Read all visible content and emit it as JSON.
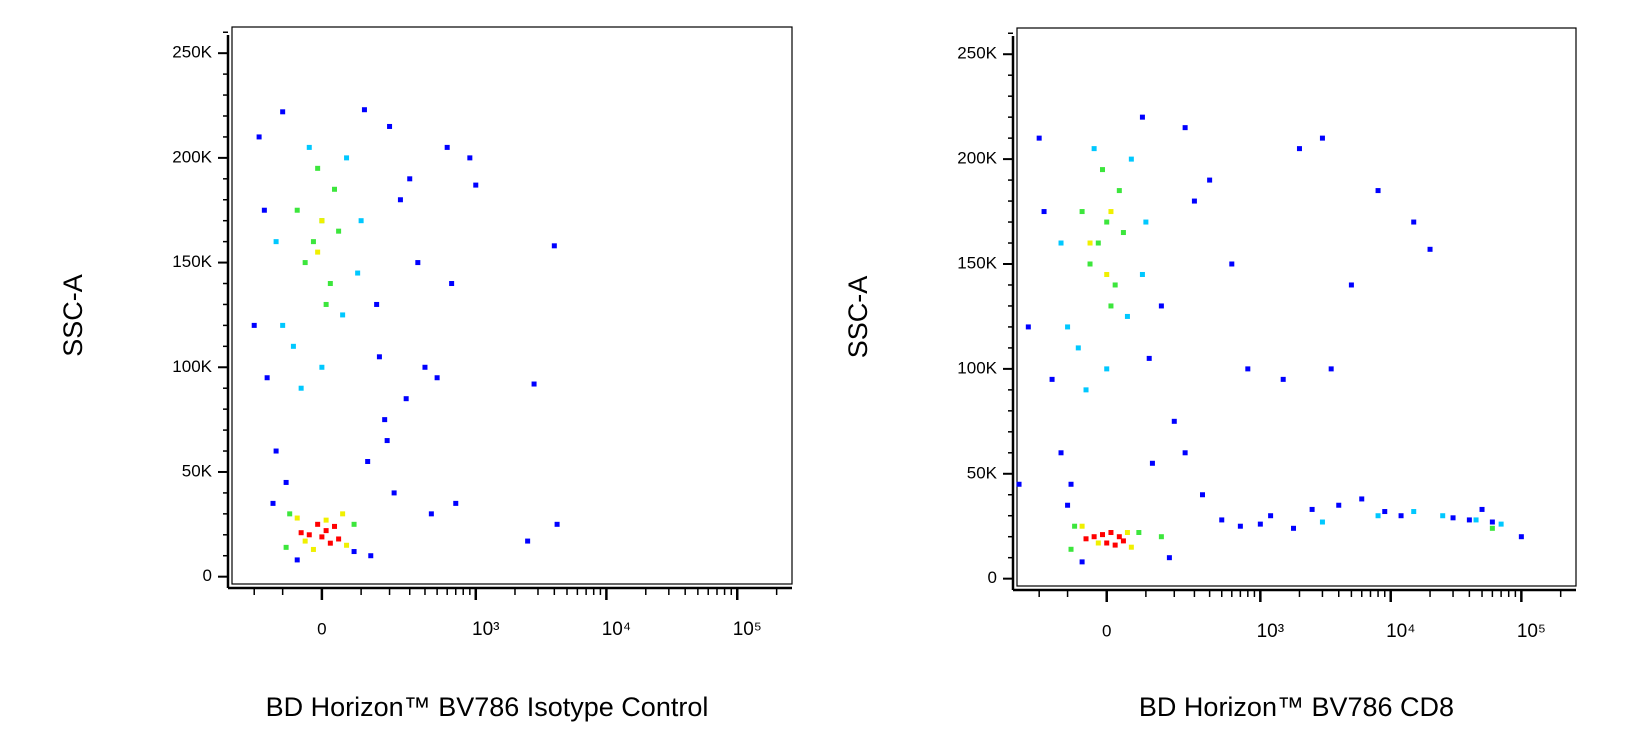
{
  "chart_data": [
    {
      "type": "scatter",
      "x_label": "BD Horizon™ BV786 Isotype Control",
      "y_label": "SSC-A",
      "xscale": "biexponential",
      "xlim": [
        -312,
        262000
      ],
      "ylim": [
        -3500,
        262500
      ],
      "xticks": [
        0,
        {
          "value": 1000,
          "label": "10³"
        },
        {
          "value": 10000,
          "label": "10⁴"
        },
        {
          "value": 100000,
          "label": "10⁵"
        }
      ],
      "yticks": [
        0,
        {
          "value": 50000,
          "label": "50K"
        },
        {
          "value": 100000,
          "label": "100K"
        },
        {
          "value": 150000,
          "label": "150K"
        },
        {
          "value": 200000,
          "label": "200K"
        },
        {
          "value": 250000,
          "label": "250K"
        }
      ],
      "xminor_ticks": [
        -200,
        -100,
        100,
        200,
        300,
        400,
        500,
        600,
        700,
        800,
        900,
        2000,
        3000,
        4000,
        5000,
        6000,
        7000,
        8000,
        9000,
        20000,
        30000,
        40000,
        50000,
        60000,
        70000,
        80000,
        90000,
        200000
      ],
      "yminor_ticks": [
        10000,
        20000,
        30000,
        40000,
        60000,
        70000,
        80000,
        90000,
        110000,
        120000,
        130000,
        140000,
        160000,
        170000,
        180000,
        190000,
        210000,
        220000,
        230000,
        240000,
        260000
      ],
      "series": [
        {
          "color": "#0000ff",
          "x": [
            -180,
            -150,
            200,
            250,
            -120,
            150,
            300,
            350,
            400,
            500,
            -200,
            180,
            120,
            -90,
            220,
            600,
            900,
            1000,
            700,
            2500,
            4000,
            2800,
            4200,
            -160,
            130,
            -130,
            160,
            280,
            -100,
            110,
            450,
            650,
            80,
            -60,
            190
          ],
          "values": [
            210000,
            95000,
            215000,
            180000,
            60000,
            130000,
            190000,
            150000,
            100000,
            95000,
            120000,
            75000,
            55000,
            45000,
            40000,
            205000,
            200000,
            187000,
            35000,
            17000,
            158000,
            92000,
            25000,
            175000,
            10000,
            35000,
            105000,
            85000,
            222000,
            223000,
            30000,
            140000,
            12000,
            8000,
            65000
          ]
        },
        {
          "color": "#00c8ff",
          "x": [
            -100,
            60,
            -70,
            90,
            -30,
            0,
            50,
            -120,
            100,
            -50
          ],
          "values": [
            120000,
            200000,
            110000,
            145000,
            205000,
            100000,
            125000,
            160000,
            170000,
            90000
          ]
        },
        {
          "color": "#3ce63c",
          "x": [
            -40,
            0,
            30,
            -20,
            20,
            -10,
            40,
            -60,
            10,
            -80,
            80,
            -90
          ],
          "values": [
            150000,
            170000,
            185000,
            160000,
            140000,
            195000,
            165000,
            175000,
            130000,
            30000,
            25000,
            14000
          ]
        },
        {
          "color": "#f0f000",
          "x": [
            -60,
            60,
            -20,
            50,
            -40,
            10,
            0,
            -10
          ],
          "values": [
            28000,
            15000,
            13000,
            30000,
            17000,
            27000,
            170000,
            155000
          ]
        },
        {
          "color": "#ff0000",
          "x": [
            -30,
            10,
            40,
            -10,
            20,
            -50,
            30,
            0
          ],
          "values": [
            20000,
            22000,
            18000,
            25000,
            16000,
            21000,
            24000,
            19000
          ]
        }
      ]
    },
    {
      "type": "scatter",
      "x_label": "BD Horizon™ BV786 CD8",
      "y_label": "SSC-A",
      "xscale": "biexponential",
      "xlim": [
        -312,
        262000
      ],
      "ylim": [
        -3500,
        262500
      ],
      "xticks": [
        0,
        {
          "value": 1000,
          "label": "10³"
        },
        {
          "value": 10000,
          "label": "10⁴"
        },
        {
          "value": 100000,
          "label": "10⁵"
        }
      ],
      "yticks": [
        0,
        {
          "value": 50000,
          "label": "50K"
        },
        {
          "value": 100000,
          "label": "100K"
        },
        {
          "value": 150000,
          "label": "150K"
        },
        {
          "value": 200000,
          "label": "200K"
        },
        {
          "value": 250000,
          "label": "250K"
        }
      ],
      "xminor_ticks": [
        -200,
        -100,
        100,
        200,
        300,
        400,
        500,
        600,
        700,
        800,
        900,
        2000,
        3000,
        4000,
        5000,
        6000,
        7000,
        8000,
        9000,
        20000,
        30000,
        40000,
        50000,
        60000,
        70000,
        80000,
        90000,
        200000
      ],
      "yminor_ticks": [
        10000,
        20000,
        30000,
        40000,
        60000,
        70000,
        80000,
        90000,
        110000,
        120000,
        130000,
        140000,
        160000,
        170000,
        180000,
        190000,
        210000,
        220000,
        230000,
        240000,
        260000
      ],
      "series": [
        {
          "color": "#0000ff",
          "x": [
            -200,
            -150,
            250,
            300,
            -120,
            150,
            400,
            600,
            800,
            1500,
            -250,
            200,
            120,
            -90,
            350,
            2000,
            3000,
            5000,
            8000,
            15000,
            20000,
            40000,
            60000,
            100000,
            700,
            1200,
            2500,
            4000,
            6000,
            9000,
            12000,
            30000,
            50000,
            -180,
            180,
            -100,
            110,
            500,
            1000,
            3500,
            -300,
            250,
            -60,
            90,
            1800
          ],
          "values": [
            210000,
            95000,
            215000,
            180000,
            60000,
            130000,
            190000,
            150000,
            100000,
            95000,
            120000,
            75000,
            55000,
            45000,
            40000,
            205000,
            210000,
            140000,
            185000,
            170000,
            157000,
            28000,
            27000,
            20000,
            25000,
            30000,
            33000,
            35000,
            38000,
            32000,
            30000,
            29000,
            33000,
            175000,
            10000,
            35000,
            105000,
            28000,
            26000,
            100000,
            45000,
            60000,
            8000,
            220000,
            24000
          ]
        },
        {
          "color": "#00c8ff",
          "x": [
            -100,
            60,
            -70,
            90,
            -30,
            0,
            50,
            -120,
            100,
            -50,
            15000,
            25000,
            45000,
            70000,
            8000,
            3000
          ],
          "values": [
            120000,
            200000,
            110000,
            145000,
            205000,
            100000,
            125000,
            160000,
            170000,
            90000,
            32000,
            30000,
            28000,
            26000,
            30000,
            27000
          ]
        },
        {
          "color": "#3ce63c",
          "x": [
            -40,
            0,
            30,
            -20,
            20,
            -10,
            40,
            -60,
            10,
            60000,
            -80,
            80,
            -90,
            150
          ],
          "values": [
            150000,
            170000,
            185000,
            160000,
            140000,
            195000,
            165000,
            175000,
            130000,
            24000,
            25000,
            22000,
            14000,
            20000
          ]
        },
        {
          "color": "#f0f000",
          "x": [
            -60,
            60,
            -20,
            50,
            -40,
            10,
            0
          ],
          "values": [
            25000,
            15000,
            17000,
            22000,
            160000,
            175000,
            145000
          ]
        },
        {
          "color": "#ff0000",
          "x": [
            -30,
            10,
            40,
            -10,
            20,
            -50,
            30,
            0
          ],
          "values": [
            20000,
            22000,
            18000,
            21000,
            16000,
            19000,
            20000,
            17000
          ]
        }
      ]
    }
  ]
}
